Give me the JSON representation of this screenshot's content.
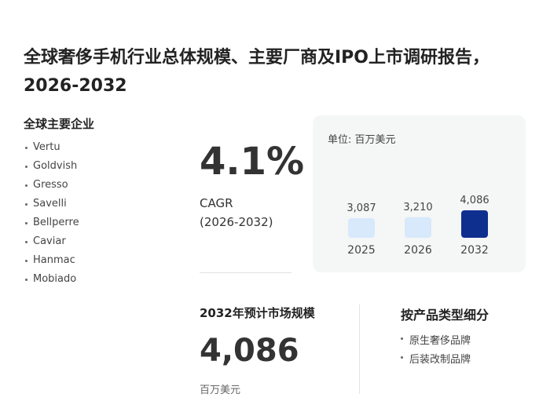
{
  "header": {
    "title": "全球奢侈手机行业总体规模、主要厂商及IPO上市调研报告，2026-2032"
  },
  "companies": {
    "heading": "全球主要企业",
    "items": [
      "Vertu",
      "Goldvish",
      "Gresso",
      "Savelli",
      "Bellperre",
      "Caviar",
      "Hanmac",
      "Mobiado"
    ]
  },
  "cagr": {
    "value": "4.1%",
    "label": "CAGR",
    "period": "(2026-2032)"
  },
  "chart_data": {
    "type": "bar",
    "unit": "单位: 百万美元",
    "categories": [
      "2025",
      "2026",
      "2032"
    ],
    "values": [
      3087,
      3210,
      4086
    ],
    "value_labels": [
      "3,087",
      "3,210",
      "4,086"
    ],
    "colors": [
      "#d7e9fb",
      "#d7e9fb",
      "#0f2f8f"
    ]
  },
  "market_size": {
    "heading": "2032年预计市场规模",
    "value": "4,086",
    "unit": "百万美元"
  },
  "segments": {
    "heading": "按产品类型细分",
    "items": [
      "原生奢侈品牌",
      "后装改制品牌"
    ]
  }
}
